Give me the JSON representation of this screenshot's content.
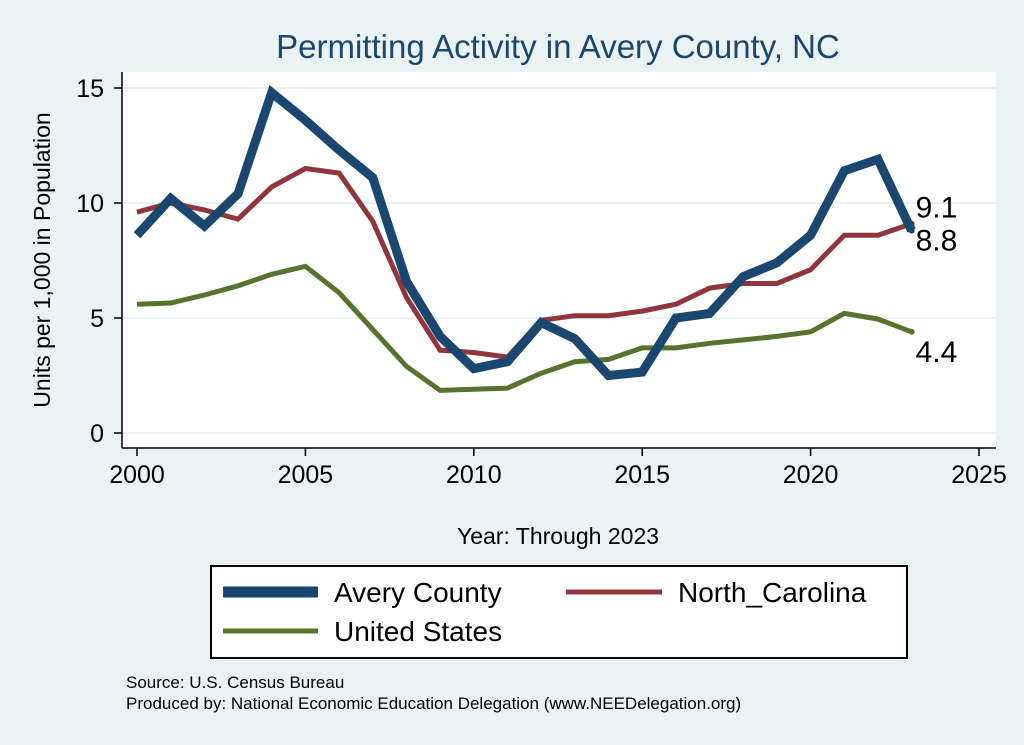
{
  "chart_data": {
    "type": "line",
    "title": "Permitting Activity in Avery County, NC",
    "xlabel": "Year: Through 2023",
    "ylabel": "Units per 1,000 in Population",
    "xlim": [
      2000,
      2025
    ],
    "ylim": [
      0,
      15
    ],
    "xticks": [
      "2000",
      "2005",
      "2010",
      "2015",
      "2020",
      "2025"
    ],
    "yticks": [
      "0",
      "5",
      "10",
      "15"
    ],
    "grid": true,
    "legend_position": "bottom",
    "x": [
      2000,
      2001,
      2002,
      2003,
      2004,
      2005,
      2006,
      2007,
      2008,
      2009,
      2010,
      2011,
      2012,
      2013,
      2014,
      2015,
      2016,
      2017,
      2018,
      2019,
      2020,
      2021,
      2022,
      2023
    ],
    "series": [
      {
        "name": "Avery County",
        "color": "#1a476f",
        "values": [
          8.6,
          10.2,
          9.0,
          10.4,
          14.8,
          13.6,
          12.3,
          11.1,
          6.6,
          4.2,
          2.8,
          3.1,
          4.8,
          4.1,
          2.5,
          2.65,
          5.0,
          5.2,
          6.8,
          7.4,
          8.6,
          11.4,
          11.9,
          8.8
        ],
        "end_label": "8.8"
      },
      {
        "name": "North_Carolina",
        "color": "#90353b",
        "values": [
          9.6,
          10.0,
          9.7,
          9.3,
          10.7,
          11.5,
          11.3,
          9.2,
          5.9,
          3.6,
          3.5,
          3.3,
          4.9,
          5.1,
          5.1,
          5.3,
          5.6,
          6.3,
          6.5,
          6.5,
          7.1,
          8.6,
          8.6,
          9.1
        ],
        "end_label": "9.1"
      },
      {
        "name": "United States",
        "color": "#55752f",
        "values": [
          5.6,
          5.65,
          6.0,
          6.4,
          6.9,
          7.25,
          6.1,
          4.5,
          2.9,
          1.85,
          1.9,
          1.95,
          2.6,
          3.1,
          3.2,
          3.7,
          3.7,
          3.9,
          4.05,
          4.2,
          4.4,
          5.2,
          4.95,
          4.4
        ],
        "end_label": "4.4"
      }
    ],
    "source_note": "Source: U.S. Census Bureau",
    "produced_by": "Produced by: National Economic Education Delegation (www.NEEDelegation.org)"
  }
}
